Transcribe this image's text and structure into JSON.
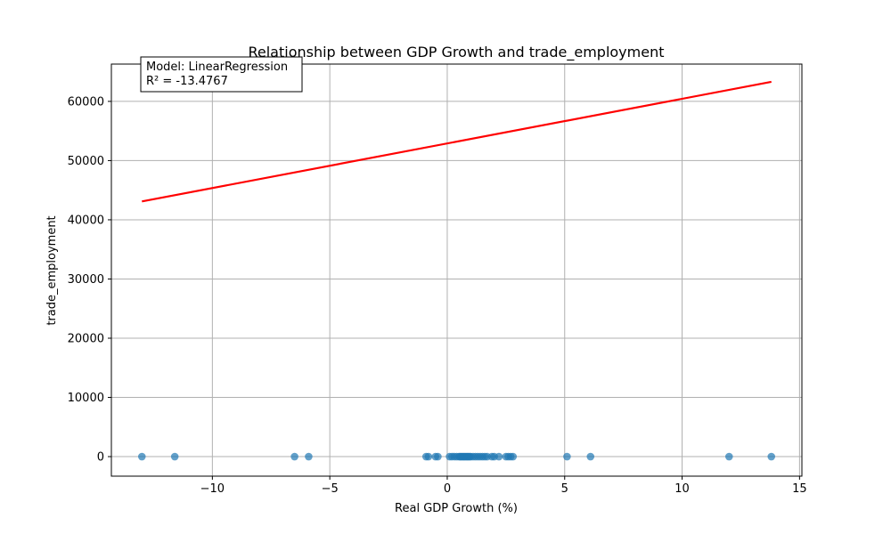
{
  "chart_data": {
    "type": "scatter",
    "title": "Relationship between GDP Growth and trade_employment",
    "xlabel": "Real GDP Growth (%)",
    "ylabel": "trade_employment",
    "xlim": [
      -14.3,
      15.1
    ],
    "ylim": [
      -3300,
      66300
    ],
    "xticks": [
      -10,
      -5,
      0,
      5,
      10,
      15
    ],
    "xtick_labels": [
      "−10",
      "−5",
      "0",
      "5",
      "10",
      "15"
    ],
    "yticks": [
      0,
      10000,
      20000,
      30000,
      40000,
      50000,
      60000
    ],
    "ytick_labels": [
      "0",
      "10000",
      "20000",
      "30000",
      "40000",
      "50000",
      "60000"
    ],
    "grid": true,
    "point_color": "#1f77b4",
    "line_color": "#ff0000",
    "series": [
      {
        "kind": "scatter",
        "points": [
          {
            "x": -13.0,
            "y": 0
          },
          {
            "x": -11.6,
            "y": 0
          },
          {
            "x": -6.5,
            "y": 0
          },
          {
            "x": -5.9,
            "y": 0
          },
          {
            "x": -0.9,
            "y": 0
          },
          {
            "x": -0.8,
            "y": 0
          },
          {
            "x": -0.5,
            "y": 0
          },
          {
            "x": -0.4,
            "y": 0
          },
          {
            "x": 0.1,
            "y": 0
          },
          {
            "x": 0.2,
            "y": 0
          },
          {
            "x": 0.3,
            "y": 0
          },
          {
            "x": 0.4,
            "y": 0
          },
          {
            "x": 0.5,
            "y": 0
          },
          {
            "x": 0.55,
            "y": 0
          },
          {
            "x": 0.6,
            "y": 0
          },
          {
            "x": 0.65,
            "y": 0
          },
          {
            "x": 0.7,
            "y": 0
          },
          {
            "x": 0.75,
            "y": 0
          },
          {
            "x": 0.8,
            "y": 0
          },
          {
            "x": 0.85,
            "y": 0
          },
          {
            "x": 0.9,
            "y": 0
          },
          {
            "x": 0.95,
            "y": 0
          },
          {
            "x": 1.0,
            "y": 0
          },
          {
            "x": 1.1,
            "y": 0
          },
          {
            "x": 1.2,
            "y": 0
          },
          {
            "x": 1.3,
            "y": 0
          },
          {
            "x": 1.4,
            "y": 0
          },
          {
            "x": 1.5,
            "y": 0
          },
          {
            "x": 1.6,
            "y": 0
          },
          {
            "x": 1.7,
            "y": 0
          },
          {
            "x": 1.9,
            "y": 0
          },
          {
            "x": 2.0,
            "y": 0
          },
          {
            "x": 2.2,
            "y": 0
          },
          {
            "x": 2.5,
            "y": 0
          },
          {
            "x": 2.6,
            "y": 0
          },
          {
            "x": 2.7,
            "y": 0
          },
          {
            "x": 2.8,
            "y": 0
          },
          {
            "x": 5.1,
            "y": 0
          },
          {
            "x": 6.1,
            "y": 0
          },
          {
            "x": 12.0,
            "y": 0
          },
          {
            "x": 13.8,
            "y": 0
          }
        ]
      },
      {
        "kind": "line",
        "points": [
          {
            "x": -13.0,
            "y": 43100
          },
          {
            "x": 13.8,
            "y": 63300
          }
        ]
      }
    ],
    "annotation": {
      "lines": [
        "Model: LinearRegression",
        "R² = -13.4767"
      ],
      "placement": "top-left"
    }
  }
}
